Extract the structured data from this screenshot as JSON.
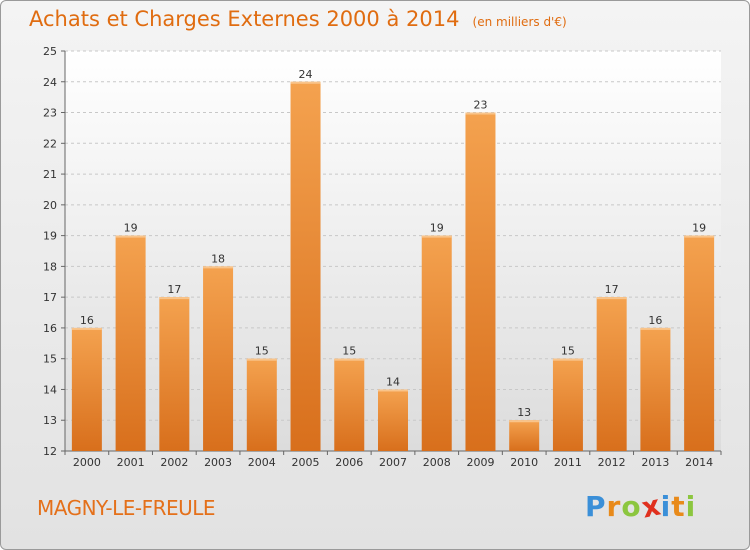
{
  "header": {
    "title": "Achats et Charges Externes 2000 à 2014",
    "unit": "(en milliers d'€)"
  },
  "footer": {
    "city": "MAGNY-LE-FREULE",
    "logo_letters": [
      "P",
      "r",
      "o",
      "x",
      "i",
      "t",
      "i"
    ]
  },
  "colors": {
    "accent": "#e06c10",
    "bar_light": "#f6a85a",
    "bar_dark": "#d87020",
    "logo": [
      "#3a8fd8",
      "#e88a1a",
      "#8cc63f",
      "#e0301e",
      "#3a8fd8",
      "#e88a1a",
      "#8cc63f"
    ]
  },
  "chart_data": {
    "type": "bar",
    "title": "Achats et Charges Externes 2000 à 2014",
    "subtitle": "(en milliers d'€)",
    "categories": [
      "2000",
      "2001",
      "2002",
      "2003",
      "2004",
      "2005",
      "2006",
      "2007",
      "2008",
      "2009",
      "2010",
      "2011",
      "2012",
      "2013",
      "2014"
    ],
    "values": [
      16,
      19,
      17,
      18,
      15,
      24,
      15,
      14,
      19,
      23,
      13,
      15,
      17,
      16,
      19
    ],
    "ylim": [
      12,
      25
    ],
    "yticks": [
      12,
      13,
      14,
      15,
      16,
      17,
      18,
      19,
      20,
      21,
      22,
      23,
      24,
      25
    ],
    "grid": true,
    "legend": "none"
  }
}
